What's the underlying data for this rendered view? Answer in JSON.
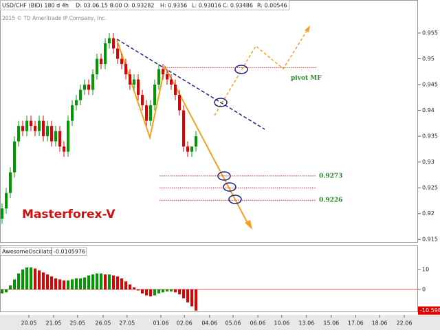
{
  "header": {
    "date": "D: 03.06.15 8:00",
    "open": "O: 0.93282",
    "high": "H: 0.9356",
    "low": "L: 0.93016",
    "close": "C: 0.93486",
    "range": "R: 0.00546",
    "copyright": "2015 © TD Ameritrade IP Company, Inc."
  },
  "chart_data": [
    {
      "type": "candlestick",
      "title": "USD/CHF (BID) 180 d 4h",
      "annotation": "Masterforex-V",
      "up_color": "#009a00",
      "down_color": "#e00000",
      "open": [
        0.919,
        0.921,
        0.924,
        0.928,
        0.934,
        0.937,
        0.936,
        0.938,
        0.937,
        0.936,
        0.938,
        0.935,
        0.937,
        0.934,
        0.936,
        0.933,
        0.932,
        0.938,
        0.941,
        0.942,
        0.944,
        0.945,
        0.944,
        0.947,
        0.95,
        0.949,
        0.953,
        0.954,
        0.952,
        0.95,
        0.949,
        0.947,
        0.945,
        0.946,
        0.943,
        0.941,
        0.938,
        0.941,
        0.945,
        0.948,
        0.947,
        0.946,
        0.945,
        0.943,
        0.94,
        0.933,
        0.932,
        0.933
      ],
      "high": [
        0.922,
        0.925,
        0.929,
        0.935,
        0.938,
        0.938,
        0.939,
        0.939,
        0.938,
        0.939,
        0.939,
        0.938,
        0.938,
        0.937,
        0.937,
        0.934,
        0.939,
        0.942,
        0.943,
        0.945,
        0.946,
        0.946,
        0.948,
        0.951,
        0.951,
        0.954,
        0.955,
        0.955,
        0.953,
        0.951,
        0.95,
        0.948,
        0.947,
        0.947,
        0.944,
        0.942,
        0.942,
        0.946,
        0.949,
        0.949,
        0.948,
        0.947,
        0.946,
        0.944,
        0.941,
        0.934,
        0.933,
        0.936
      ],
      "low": [
        0.918,
        0.92,
        0.923,
        0.927,
        0.933,
        0.935,
        0.935,
        0.936,
        0.935,
        0.935,
        0.934,
        0.934,
        0.933,
        0.933,
        0.932,
        0.931,
        0.931,
        0.937,
        0.94,
        0.941,
        0.943,
        0.943,
        0.943,
        0.946,
        0.948,
        0.948,
        0.952,
        0.951,
        0.949,
        0.948,
        0.946,
        0.944,
        0.944,
        0.942,
        0.94,
        0.937,
        0.937,
        0.94,
        0.944,
        0.946,
        0.945,
        0.944,
        0.942,
        0.939,
        0.932,
        0.931,
        0.931,
        0.932
      ],
      "close": [
        0.921,
        0.924,
        0.928,
        0.934,
        0.937,
        0.936,
        0.938,
        0.937,
        0.936,
        0.938,
        0.935,
        0.937,
        0.934,
        0.936,
        0.933,
        0.932,
        0.938,
        0.941,
        0.942,
        0.944,
        0.945,
        0.944,
        0.947,
        0.95,
        0.949,
        0.953,
        0.954,
        0.952,
        0.95,
        0.949,
        0.947,
        0.945,
        0.946,
        0.943,
        0.941,
        0.938,
        0.941,
        0.945,
        0.948,
        0.947,
        0.946,
        0.945,
        0.943,
        0.94,
        0.933,
        0.932,
        0.933,
        0.935
      ],
      "xlim": [
        -0.5,
        100.83
      ],
      "xticks": [
        {
          "value": 6.5,
          "label": "20.05"
        },
        {
          "value": 12.5,
          "label": "21.05"
        },
        {
          "value": 18.3,
          "label": "25.05"
        },
        {
          "value": 24.5,
          "label": "26.05"
        },
        {
          "value": 30.3,
          "label": "27.05"
        },
        {
          "value": 38.5,
          "label": "01.06"
        },
        {
          "value": 44.2,
          "label": "02.06"
        },
        {
          "value": 50.3,
          "label": "04.06"
        },
        {
          "value": 56,
          "label": "05.06"
        },
        {
          "value": 62,
          "label": "06.06"
        },
        {
          "value": 67.8,
          "label": "10.06"
        },
        {
          "value": 73.8,
          "label": "13.06"
        },
        {
          "value": 79.8,
          "label": "15.06"
        },
        {
          "value": 85.7,
          "label": "17.06"
        },
        {
          "value": 91.5,
          "label": "18.06"
        },
        {
          "value": 97.5,
          "label": "22.06"
        }
      ],
      "ylim": [
        0.9145,
        0.9614
      ],
      "yticks": [
        0.915,
        0.92,
        0.925,
        0.93,
        0.935,
        0.94,
        0.945,
        0.95,
        0.955
      ],
      "levels": [
        0.9273,
        0.925,
        0.9226
      ],
      "level_labels": [
        "0.9273",
        null,
        "0.9226"
      ],
      "level_color": "#e02020",
      "pivot": {
        "value": 0.9483,
        "label": "pivot MF"
      }
    },
    {
      "type": "bar",
      "title": "AwesomeOscillator",
      "subtitle": "-0.0105976",
      "current_label": "-10.598",
      "up_color": "#009a00",
      "down_color": "#e00000",
      "values": [
        -2,
        -1.5,
        2,
        5,
        8,
        10,
        11,
        11,
        10.5,
        9.5,
        8.5,
        7.5,
        6.5,
        5.5,
        5,
        4.5,
        4.5,
        5,
        5.5,
        5.5,
        6,
        7,
        7.5,
        8,
        8,
        7.5,
        7.5,
        7,
        6.5,
        5.5,
        4,
        2.5,
        1,
        -0.5,
        -2,
        -3,
        -3.5,
        -3,
        -2,
        -1.5,
        -1,
        -1,
        -1.5,
        -2.5,
        -4.5,
        -6.5,
        -8.5,
        -10.6
      ],
      "xlim": [
        -0.5,
        100.83
      ],
      "ylim": [
        -10.7,
        21.7
      ],
      "yticks": [
        0,
        10
      ]
    }
  ]
}
